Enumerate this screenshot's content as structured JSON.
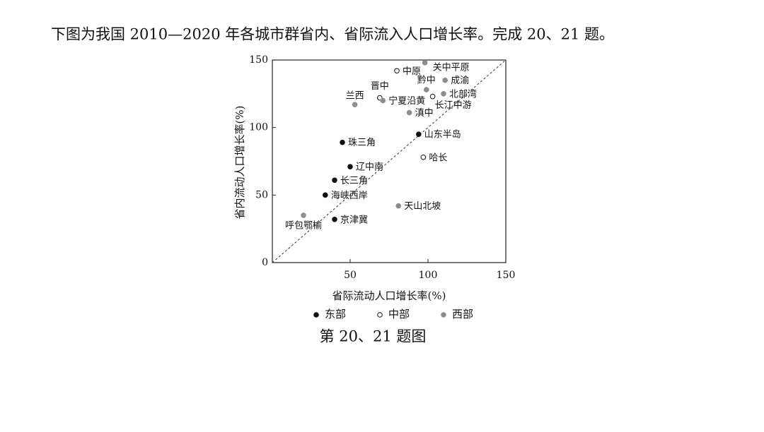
{
  "header": {
    "text": "下图为我国 2010—2020 年各城市群省内、省际流入人口增长率。完成 20、21 题。"
  },
  "chart_data": {
    "type": "scatter",
    "x_label": "省际流动人口增长率(%)",
    "y_label": "省内流动人口增长率(%)",
    "xlim": [
      0,
      150
    ],
    "ylim": [
      0,
      150
    ],
    "xticks": [
      50,
      100,
      150
    ],
    "yticks": [
      0,
      50,
      100,
      150
    ],
    "series": [
      {
        "name": "东部",
        "color": "#111111",
        "edgecolor": "#111111",
        "x": [
          45,
          50,
          40,
          34,
          40,
          94
        ],
        "values": [
          89,
          71,
          61,
          50,
          32,
          95
        ],
        "labels": [
          "珠三角",
          "辽中南",
          "长三角",
          "海峡西岸",
          "京津冀",
          "山东半岛"
        ]
      },
      {
        "name": "中部",
        "color": "#ffffff",
        "edgecolor": "#111111",
        "x": [
          80,
          69,
          103,
          97
        ],
        "values": [
          142,
          122,
          123,
          78
        ],
        "labels": [
          "中原",
          "晋中",
          "长江中游",
          "哈长"
        ]
      },
      {
        "name": "西部",
        "color": "#8c8c8c",
        "edgecolor": "#8c8c8c",
        "x": [
          98,
          111,
          99,
          110,
          53,
          71,
          88,
          81,
          20
        ],
        "values": [
          148,
          135,
          128,
          125,
          117,
          120,
          111,
          42,
          35
        ],
        "labels": [
          "关中平原",
          "成渝",
          "黔中",
          "北部湾",
          "兰西",
          "宁夏沿黄",
          "滇中",
          "天山北坡",
          "呼包鄂榆"
        ]
      }
    ],
    "caption": "第 20、21 题图"
  }
}
